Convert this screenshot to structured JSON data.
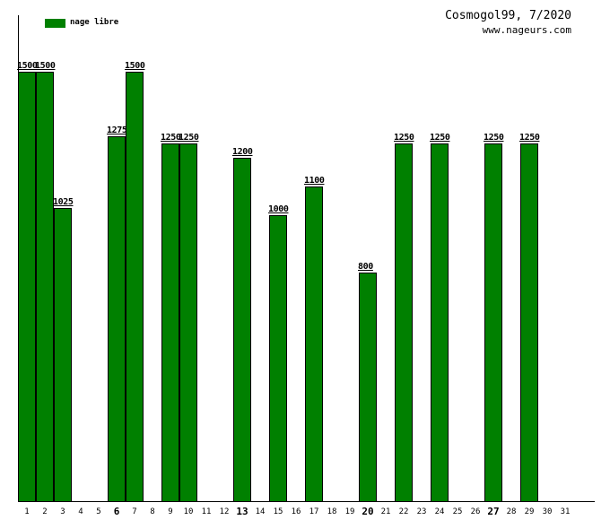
{
  "header": {
    "title": "Cosmogol99, 7/2020",
    "site": "www.nageurs.com"
  },
  "legend": {
    "label": "nage libre",
    "color": "#008000"
  },
  "colors": {
    "bar_fill": "#008000",
    "bar_border": "#000000",
    "axis": "#000000",
    "text": "#000000",
    "background": "#ffffff"
  },
  "chart_data": {
    "type": "bar",
    "title": "Cosmogol99, 7/2020",
    "subtitle": "www.nageurs.com",
    "legend": [
      {
        "name": "nage libre",
        "color": "#008000"
      }
    ],
    "legend_position": "top-left",
    "grid": false,
    "categories": [
      1,
      2,
      3,
      4,
      5,
      6,
      7,
      8,
      9,
      10,
      11,
      12,
      13,
      14,
      15,
      16,
      17,
      18,
      19,
      20,
      21,
      22,
      23,
      24,
      25,
      26,
      27,
      28,
      29,
      30,
      31
    ],
    "values": [
      1500,
      1500,
      1025,
      0,
      0,
      1275,
      1500,
      0,
      1250,
      1250,
      0,
      0,
      1200,
      0,
      1000,
      0,
      1100,
      0,
      0,
      800,
      0,
      1250,
      0,
      1250,
      0,
      0,
      1250,
      0,
      1250,
      0,
      0
    ],
    "value_labels_shown_for_nonzero_bars": true,
    "bold_categories": [
      6,
      13,
      20,
      27
    ],
    "ylim": [
      0,
      1500
    ],
    "y_ticks_shown": false
  }
}
